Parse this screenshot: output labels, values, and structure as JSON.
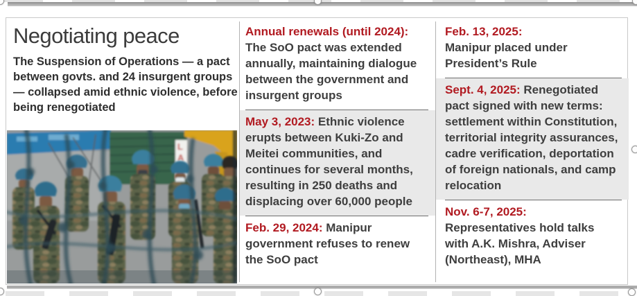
{
  "accent_color": "#b11a21",
  "highlight_color": "#e9e9e9",
  "panel": {
    "title": "Negotiating peace",
    "intro": "The Suspension of Operations — a pact between govts. and 24 insurgent groups — collapsed amid ethnic violence, before being renegotiated",
    "photo": {
      "alt": "Security personnel in camouflage uniforms and blue helmets standing guard, seen through blurred coils of barbed wire"
    },
    "columns": [
      {
        "entries": [
          {
            "date": "Annual renewals (until 2024):",
            "text": "The SoO pact was extended annually, maintaining dialogue between the government and insurgent groups",
            "highlighted": false,
            "date_on_own_line": false
          },
          {
            "date": "May 3, 2023:",
            "text": "Ethnic violence erupts between Kuki-Zo and Meitei communities, and continues for several months, resulting in 250 deaths and displacing over 60,000 people",
            "highlighted": true,
            "date_on_own_line": false
          },
          {
            "date": "Feb. 29, 2024:",
            "text": "Manipur government refuses to renew the SoO pact",
            "highlighted": false,
            "date_on_own_line": false
          }
        ]
      },
      {
        "entries": [
          {
            "date": "Feb. 13, 2025:",
            "text": "Manipur placed under President’s Rule",
            "highlighted": false,
            "date_on_own_line": true
          },
          {
            "date": "Sept. 4, 2025:",
            "text": "Renegotiated pact signed with new terms: settlement within Constitution, territorial integrity assurances, cadre verification, deportation of foreign nationals, and camp relocation",
            "highlighted": true,
            "date_on_own_line": false
          },
          {
            "date": "Nov. 6-7, 2025:",
            "text": "Representatives hold talks with A.K. Mishra, Adviser (Northeast), MHA",
            "highlighted": false,
            "date_on_own_line": true
          }
        ]
      }
    ]
  }
}
